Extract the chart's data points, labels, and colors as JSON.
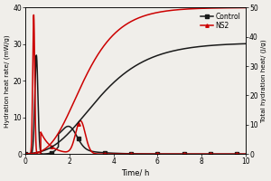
{
  "xlabel": "Time/ h",
  "ylabel_left": "Hydration heat rate/ (mW/g)",
  "ylabel_right": "Total hydration heat/ (J/g)",
  "xlim": [
    0,
    10
  ],
  "ylim_left": [
    0,
    40
  ],
  "ylim_right": [
    0,
    50
  ],
  "yticks_left": [
    0,
    10,
    20,
    30,
    40
  ],
  "yticks_right": [
    0,
    10,
    20,
    30,
    40,
    50
  ],
  "xticks": [
    0,
    2,
    4,
    6,
    8,
    10
  ],
  "legend_labels": [
    "Control",
    "NS2"
  ],
  "control_color": "#1a1a1a",
  "ns2_color": "#cc0000",
  "background_color": "#f0eeea",
  "lw": 1.1
}
